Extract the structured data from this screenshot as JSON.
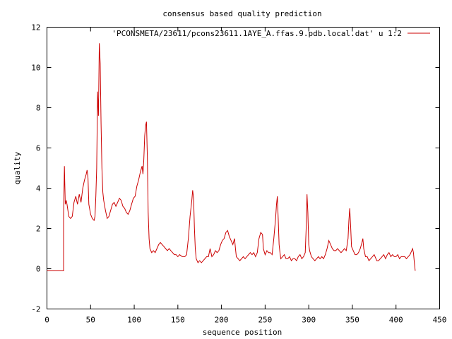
{
  "chart_data": {
    "type": "line",
    "title": "consensus based quality prediction",
    "xlabel": "sequence position",
    "ylabel": "quality",
    "xlim": [
      0,
      450
    ],
    "ylim": [
      -2,
      12
    ],
    "xticks": [
      "0",
      "50",
      "100",
      "150",
      "200",
      "250",
      "300",
      "350",
      "400",
      "450"
    ],
    "yticks": [
      "-2",
      "0",
      "2",
      "4",
      "6",
      "8",
      "10",
      "12"
    ],
    "grid": false,
    "legend_position": "top-right",
    "series": [
      {
        "name": "'PCONSMETA/23611/pcons23611.1AYE_A.ffas.9.pdb.local.dat' u 1:2",
        "color": "#cc0000",
        "points": [
          [
            0,
            -0.1
          ],
          [
            19,
            -0.1
          ],
          [
            19,
            2.6
          ],
          [
            20,
            5.1
          ],
          [
            21,
            3.2
          ],
          [
            22,
            3.4
          ],
          [
            23,
            3.2
          ],
          [
            25,
            2.6
          ],
          [
            27,
            2.5
          ],
          [
            29,
            2.6
          ],
          [
            31,
            3.3
          ],
          [
            33,
            3.6
          ],
          [
            35,
            3.2
          ],
          [
            37,
            3.7
          ],
          [
            39,
            3.3
          ],
          [
            41,
            4.0
          ],
          [
            43,
            4.4
          ],
          [
            45,
            4.7
          ],
          [
            46,
            4.9
          ],
          [
            47,
            4.5
          ],
          [
            48,
            3.2
          ],
          [
            50,
            2.7
          ],
          [
            52,
            2.5
          ],
          [
            54,
            2.4
          ],
          [
            55,
            2.6
          ],
          [
            56,
            3.6
          ],
          [
            57,
            5.0
          ],
          [
            58,
            8.8
          ],
          [
            59,
            7.6
          ],
          [
            60,
            11.2
          ],
          [
            61,
            10.2
          ],
          [
            62,
            7.2
          ],
          [
            63,
            5.0
          ],
          [
            64,
            3.8
          ],
          [
            65,
            3.4
          ],
          [
            67,
            2.9
          ],
          [
            69,
            2.5
          ],
          [
            71,
            2.6
          ],
          [
            73,
            2.9
          ],
          [
            75,
            3.2
          ],
          [
            77,
            3.3
          ],
          [
            79,
            3.1
          ],
          [
            81,
            3.3
          ],
          [
            83,
            3.5
          ],
          [
            85,
            3.4
          ],
          [
            87,
            3.1
          ],
          [
            89,
            3.0
          ],
          [
            91,
            2.8
          ],
          [
            93,
            2.7
          ],
          [
            95,
            2.9
          ],
          [
            97,
            3.2
          ],
          [
            99,
            3.5
          ],
          [
            101,
            3.6
          ],
          [
            103,
            4.1
          ],
          [
            105,
            4.4
          ],
          [
            107,
            4.8
          ],
          [
            109,
            5.1
          ],
          [
            110,
            4.7
          ],
          [
            111,
            5.4
          ],
          [
            112,
            6.6
          ],
          [
            113,
            7.1
          ],
          [
            114,
            7.3
          ],
          [
            115,
            5.6
          ],
          [
            116,
            2.8
          ],
          [
            117,
            1.5
          ],
          [
            118,
            1.0
          ],
          [
            120,
            0.8
          ],
          [
            122,
            0.9
          ],
          [
            124,
            0.8
          ],
          [
            126,
            1.0
          ],
          [
            128,
            1.2
          ],
          [
            130,
            1.3
          ],
          [
            132,
            1.2
          ],
          [
            134,
            1.1
          ],
          [
            136,
            1.0
          ],
          [
            138,
            0.9
          ],
          [
            140,
            1.0
          ],
          [
            142,
            0.9
          ],
          [
            144,
            0.8
          ],
          [
            146,
            0.7
          ],
          [
            148,
            0.7
          ],
          [
            150,
            0.6
          ],
          [
            152,
            0.7
          ],
          [
            155,
            0.6
          ],
          [
            158,
            0.6
          ],
          [
            160,
            0.7
          ],
          [
            162,
            1.5
          ],
          [
            164,
            2.6
          ],
          [
            166,
            3.4
          ],
          [
            167,
            3.9
          ],
          [
            168,
            3.5
          ],
          [
            169,
            2.0
          ],
          [
            170,
            1.0
          ],
          [
            171,
            0.5
          ],
          [
            173,
            0.3
          ],
          [
            175,
            0.4
          ],
          [
            177,
            0.3
          ],
          [
            179,
            0.4
          ],
          [
            181,
            0.5
          ],
          [
            183,
            0.6
          ],
          [
            185,
            0.6
          ],
          [
            187,
            1.0
          ],
          [
            189,
            0.6
          ],
          [
            191,
            0.7
          ],
          [
            193,
            0.9
          ],
          [
            195,
            0.8
          ],
          [
            197,
            0.9
          ],
          [
            199,
            1.2
          ],
          [
            201,
            1.4
          ],
          [
            203,
            1.5
          ],
          [
            205,
            1.8
          ],
          [
            207,
            1.9
          ],
          [
            209,
            1.6
          ],
          [
            211,
            1.4
          ],
          [
            213,
            1.2
          ],
          [
            215,
            1.5
          ],
          [
            216,
            1.0
          ],
          [
            217,
            0.6
          ],
          [
            219,
            0.5
          ],
          [
            221,
            0.4
          ],
          [
            223,
            0.5
          ],
          [
            225,
            0.6
          ],
          [
            227,
            0.5
          ],
          [
            229,
            0.6
          ],
          [
            231,
            0.7
          ],
          [
            233,
            0.8
          ],
          [
            235,
            0.7
          ],
          [
            237,
            0.8
          ],
          [
            239,
            0.6
          ],
          [
            241,
            0.8
          ],
          [
            243,
            1.5
          ],
          [
            245,
            1.8
          ],
          [
            247,
            1.7
          ],
          [
            248,
            1.0
          ],
          [
            250,
            0.7
          ],
          [
            252,
            0.9
          ],
          [
            254,
            0.8
          ],
          [
            256,
            0.8
          ],
          [
            258,
            0.7
          ],
          [
            260,
            1.5
          ],
          [
            262,
            2.5
          ],
          [
            263,
            3.2
          ],
          [
            264,
            3.6
          ],
          [
            265,
            2.5
          ],
          [
            266,
            1.2
          ],
          [
            267,
            0.8
          ],
          [
            268,
            0.5
          ],
          [
            270,
            0.6
          ],
          [
            272,
            0.7
          ],
          [
            274,
            0.5
          ],
          [
            276,
            0.5
          ],
          [
            278,
            0.6
          ],
          [
            280,
            0.4
          ],
          [
            282,
            0.5
          ],
          [
            284,
            0.5
          ],
          [
            286,
            0.4
          ],
          [
            288,
            0.6
          ],
          [
            290,
            0.7
          ],
          [
            292,
            0.5
          ],
          [
            294,
            0.6
          ],
          [
            296,
            0.8
          ],
          [
            297,
            2.0
          ],
          [
            298,
            3.7
          ],
          [
            299,
            2.8
          ],
          [
            300,
            1.2
          ],
          [
            301,
            0.9
          ],
          [
            303,
            0.6
          ],
          [
            305,
            0.5
          ],
          [
            307,
            0.4
          ],
          [
            309,
            0.5
          ],
          [
            311,
            0.6
          ],
          [
            313,
            0.5
          ],
          [
            315,
            0.6
          ],
          [
            317,
            0.5
          ],
          [
            319,
            0.7
          ],
          [
            321,
            1.0
          ],
          [
            323,
            1.4
          ],
          [
            325,
            1.2
          ],
          [
            327,
            1.0
          ],
          [
            329,
            0.9
          ],
          [
            331,
            0.9
          ],
          [
            333,
            1.0
          ],
          [
            335,
            0.9
          ],
          [
            337,
            0.8
          ],
          [
            339,
            0.9
          ],
          [
            341,
            1.0
          ],
          [
            343,
            0.9
          ],
          [
            345,
            1.5
          ],
          [
            346,
            2.4
          ],
          [
            347,
            3.0
          ],
          [
            348,
            2.1
          ],
          [
            349,
            1.1
          ],
          [
            351,
            0.9
          ],
          [
            353,
            0.7
          ],
          [
            355,
            0.7
          ],
          [
            357,
            0.8
          ],
          [
            359,
            1.0
          ],
          [
            361,
            1.3
          ],
          [
            362,
            1.5
          ],
          [
            363,
            1.0
          ],
          [
            365,
            0.6
          ],
          [
            367,
            0.6
          ],
          [
            369,
            0.4
          ],
          [
            371,
            0.5
          ],
          [
            373,
            0.6
          ],
          [
            375,
            0.7
          ],
          [
            376,
            0.6
          ],
          [
            378,
            0.4
          ],
          [
            380,
            0.4
          ],
          [
            382,
            0.5
          ],
          [
            384,
            0.6
          ],
          [
            386,
            0.7
          ],
          [
            388,
            0.5
          ],
          [
            390,
            0.7
          ],
          [
            392,
            0.8
          ],
          [
            394,
            0.6
          ],
          [
            396,
            0.7
          ],
          [
            398,
            0.6
          ],
          [
            400,
            0.6
          ],
          [
            402,
            0.7
          ],
          [
            404,
            0.5
          ],
          [
            406,
            0.6
          ],
          [
            408,
            0.6
          ],
          [
            410,
            0.6
          ],
          [
            412,
            0.5
          ],
          [
            414,
            0.6
          ],
          [
            416,
            0.7
          ],
          [
            418,
            0.9
          ],
          [
            419,
            1.0
          ],
          [
            420,
            0.8
          ],
          [
            421,
            0.3
          ],
          [
            422,
            -0.1
          ]
        ]
      }
    ]
  }
}
